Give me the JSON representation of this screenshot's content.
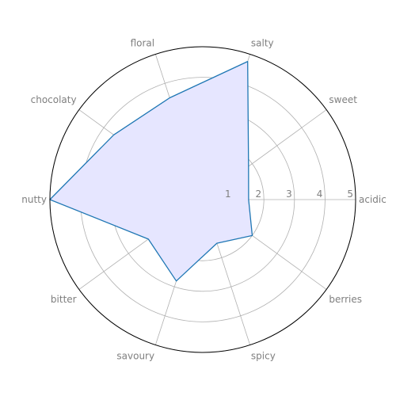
{
  "chart_data": {
    "type": "radar",
    "title": "",
    "categories": [
      "acidic",
      "sweet",
      "salty",
      "floral",
      "chocolaty",
      "nutty",
      "bitter",
      "savoury",
      "spicy",
      "berries"
    ],
    "series": [
      {
        "name": "",
        "values": [
          1.5,
          1.85,
          4.75,
          3.5,
          3.6,
          5.0,
          2.2,
          2.8,
          1.5,
          2.0
        ]
      }
    ],
    "rlim": [
      0,
      5
    ],
    "rticks": [
      "1",
      "2",
      "3",
      "4",
      "5"
    ],
    "grid": true,
    "colors": {
      "line": "#1f77b4",
      "fill": "#e6e6ff",
      "grid": "#b0b0b0",
      "frame": "#000000"
    }
  }
}
